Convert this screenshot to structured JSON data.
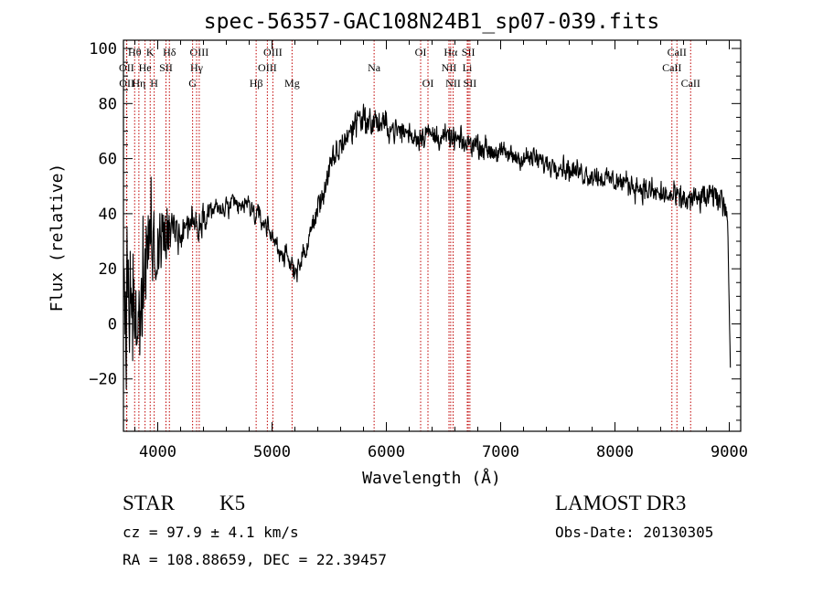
{
  "chart_data": {
    "type": "line",
    "title": "spec-56357-GAC108N24B1_sp07-039.fits",
    "xlabel": "Wavelength (Å)",
    "ylabel": "Flux (relative)",
    "xlim": [
      3700,
      9100
    ],
    "ylim": [
      -39,
      103
    ],
    "xticks": [
      4000,
      5000,
      6000,
      7000,
      8000,
      9000
    ],
    "yticks": [
      -20,
      0,
      20,
      40,
      60,
      80,
      100
    ],
    "grid": false,
    "series": [
      {
        "name": "spectrum",
        "anchors": [
          [
            3700,
            10
          ],
          [
            3750,
            5
          ],
          [
            3800,
            -10
          ],
          [
            3850,
            5
          ],
          [
            3900,
            25
          ],
          [
            3950,
            28
          ],
          [
            4000,
            25
          ],
          [
            4050,
            30
          ],
          [
            4100,
            32
          ],
          [
            4150,
            35
          ],
          [
            4200,
            34
          ],
          [
            4250,
            36
          ],
          [
            4300,
            38
          ],
          [
            4350,
            35
          ],
          [
            4400,
            40
          ],
          [
            4450,
            41
          ],
          [
            4500,
            42
          ],
          [
            4550,
            41
          ],
          [
            4600,
            42
          ],
          [
            4650,
            43
          ],
          [
            4700,
            42
          ],
          [
            4750,
            43
          ],
          [
            4800,
            43
          ],
          [
            4850,
            40
          ],
          [
            4900,
            38
          ],
          [
            4950,
            36
          ],
          [
            5000,
            32
          ],
          [
            5050,
            28
          ],
          [
            5100,
            25
          ],
          [
            5150,
            22
          ],
          [
            5200,
            20
          ],
          [
            5250,
            22
          ],
          [
            5300,
            27
          ],
          [
            5350,
            35
          ],
          [
            5400,
            42
          ],
          [
            5450,
            48
          ],
          [
            5500,
            55
          ],
          [
            5550,
            60
          ],
          [
            5600,
            65
          ],
          [
            5650,
            68
          ],
          [
            5700,
            70
          ],
          [
            5750,
            76
          ],
          [
            5800,
            75
          ],
          [
            5850,
            72
          ],
          [
            5900,
            74
          ],
          [
            5950,
            72
          ],
          [
            6000,
            72
          ],
          [
            6050,
            71
          ],
          [
            6100,
            70
          ],
          [
            6150,
            70
          ],
          [
            6200,
            69
          ],
          [
            6250,
            68
          ],
          [
            6300,
            68
          ],
          [
            6350,
            70
          ],
          [
            6400,
            68
          ],
          [
            6450,
            68
          ],
          [
            6500,
            68
          ],
          [
            6550,
            67
          ],
          [
            6600,
            67
          ],
          [
            6650,
            66
          ],
          [
            6700,
            65
          ],
          [
            6750,
            66
          ],
          [
            6800,
            65
          ],
          [
            6900,
            63
          ],
          [
            7000,
            62
          ],
          [
            7100,
            61
          ],
          [
            7200,
            60
          ],
          [
            7300,
            60
          ],
          [
            7400,
            58
          ],
          [
            7500,
            58
          ],
          [
            7600,
            56
          ],
          [
            7700,
            55
          ],
          [
            7800,
            54
          ],
          [
            7900,
            53
          ],
          [
            8000,
            52
          ],
          [
            8100,
            51
          ],
          [
            8200,
            50
          ],
          [
            8300,
            48
          ],
          [
            8400,
            47
          ],
          [
            8500,
            46
          ],
          [
            8600,
            45
          ],
          [
            8700,
            45
          ],
          [
            8800,
            46
          ],
          [
            8900,
            46
          ],
          [
            8950,
            45
          ],
          [
            8980,
            40
          ],
          [
            9000,
            38
          ]
        ],
        "noise_profile": [
          [
            3700,
            20
          ],
          [
            3900,
            15
          ],
          [
            4000,
            9
          ],
          [
            4200,
            4
          ],
          [
            4500,
            2.2
          ],
          [
            5300,
            2.5
          ],
          [
            5800,
            3.5
          ],
          [
            6000,
            2.8
          ],
          [
            7000,
            2.2
          ],
          [
            8000,
            2.5
          ],
          [
            9000,
            3
          ]
        ]
      }
    ],
    "lines": [
      {
        "label": "Hθ",
        "wavelength": 3798,
        "row": 0
      },
      {
        "label": "OII",
        "wavelength": 3727,
        "row": 1
      },
      {
        "label": "OII",
        "wavelength": 3729,
        "row": 2
      },
      {
        "label": "K",
        "wavelength": 3934,
        "row": 0
      },
      {
        "label": "He",
        "wavelength": 3889,
        "row": 1
      },
      {
        "label": "Hη",
        "wavelength": 3835,
        "row": 2
      },
      {
        "label": "Hδ",
        "wavelength": 4102,
        "row": 0
      },
      {
        "label": "SII",
        "wavelength": 4072,
        "row": 1
      },
      {
        "label": "H",
        "wavelength": 3969,
        "row": 2
      },
      {
        "label": "OIII",
        "wavelength": 4363,
        "row": 0
      },
      {
        "label": "Hγ",
        "wavelength": 4340,
        "row": 1
      },
      {
        "label": "G",
        "wavelength": 4305,
        "row": 2
      },
      {
        "label": "OIII",
        "wavelength": 5007,
        "row": 0
      },
      {
        "label": "OIII",
        "wavelength": 4959,
        "row": 1
      },
      {
        "label": "Hβ",
        "wavelength": 4861,
        "row": 2
      },
      {
        "label": "Mg",
        "wavelength": 5175,
        "row": 2
      },
      {
        "label": "Na",
        "wavelength": 5893,
        "row": 1
      },
      {
        "label": "OI",
        "wavelength": 6300,
        "row": 0
      },
      {
        "label": "OI",
        "wavelength": 6364,
        "row": 2
      },
      {
        "label": "Hα",
        "wavelength": 6563,
        "row": 0
      },
      {
        "label": "NII",
        "wavelength": 6548,
        "row": 1
      },
      {
        "label": "NII",
        "wavelength": 6584,
        "row": 2
      },
      {
        "label": "SII",
        "wavelength": 6717,
        "row": 0
      },
      {
        "label": "Li",
        "wavelength": 6708,
        "row": 1
      },
      {
        "label": "SII",
        "wavelength": 6731,
        "row": 2
      },
      {
        "label": "CaII",
        "wavelength": 8542,
        "row": 0
      },
      {
        "label": "CaII",
        "wavelength": 8498,
        "row": 1
      },
      {
        "label": "CaII",
        "wavelength": 8662,
        "row": 2
      }
    ]
  },
  "info": {
    "object_class": "STAR",
    "subclass": "K5",
    "survey": "LAMOST DR3",
    "cz": "cz = 97.9 ± 4.1 km/s",
    "obs_date": "Obs-Date: 20130305",
    "coords": "RA = 108.88659, DEC =  22.39457"
  }
}
